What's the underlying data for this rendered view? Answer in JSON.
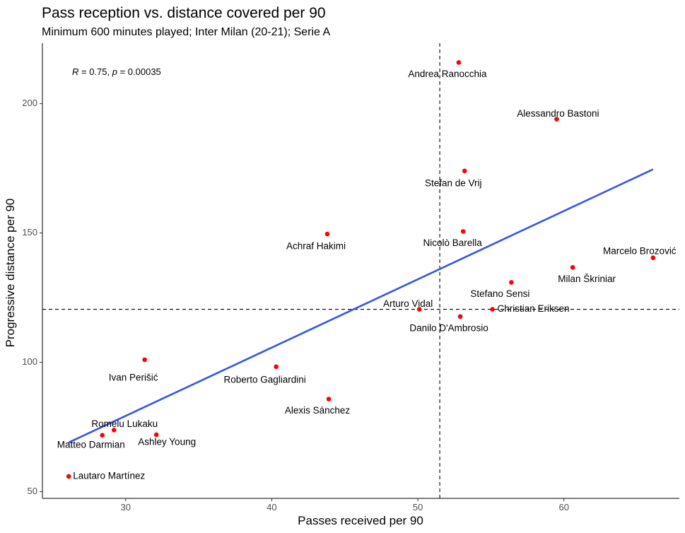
{
  "chart_data": {
    "type": "scatter",
    "title": "Pass reception vs. distance covered per 90",
    "subtitle": "Minimum 600 minutes played; Inter Milan (20-21); Serie A",
    "xlabel": "Passes received per 90",
    "ylabel": "Progressive distance per 90",
    "xlim": [
      24.3,
      67.9
    ],
    "ylim": [
      47.4,
      223.4
    ],
    "xticks": [
      30,
      40,
      50,
      60
    ],
    "yticks": [
      50,
      100,
      150,
      200
    ],
    "grid": false,
    "point_color": "#ff0000",
    "trend_color": "#3355ee",
    "annotation": {
      "r_symbol": "R",
      "r_value": " = 0.75, ",
      "p_symbol": "p",
      "p_value": " = 0.00035"
    },
    "trendline": {
      "x": [
        26.1,
        66.1
      ],
      "y": [
        69.0,
        174.6
      ]
    },
    "vline_x": 51.5,
    "hline_y": 120.5,
    "points": [
      {
        "name": "Andrea Ranocchia",
        "x": 52.8,
        "y": 215.9
      },
      {
        "name": "Alessandro Bastoni",
        "x": 59.5,
        "y": 194.0
      },
      {
        "name": "Stefan de Vrij",
        "x": 53.2,
        "y": 174.0
      },
      {
        "name": "Achraf Hakimi",
        "x": 43.8,
        "y": 149.6
      },
      {
        "name": "Nicolò Barella",
        "x": 53.1,
        "y": 150.6
      },
      {
        "name": "Marcelo Brozović",
        "x": 66.1,
        "y": 140.4
      },
      {
        "name": "Milan Škriniar",
        "x": 60.6,
        "y": 136.7
      },
      {
        "name": "Stefano Sensi",
        "x": 56.4,
        "y": 130.9
      },
      {
        "name": "Arturo Vidal",
        "x": 50.1,
        "y": 120.5
      },
      {
        "name": "Christian Eriksen",
        "x": 55.1,
        "y": 120.5
      },
      {
        "name": "Danilo D'Ambrosio",
        "x": 52.9,
        "y": 117.7
      },
      {
        "name": "Ivan Perišić",
        "x": 31.3,
        "y": 101.0
      },
      {
        "name": "Roberto Gagliardini",
        "x": 40.3,
        "y": 98.3
      },
      {
        "name": "Alexis Sánchez",
        "x": 43.9,
        "y": 85.8
      },
      {
        "name": "Romelu Lukaku",
        "x": 29.2,
        "y": 73.8
      },
      {
        "name": "Matteo Darmian",
        "x": 28.4,
        "y": 71.8
      },
      {
        "name": "Ashley Young",
        "x": 32.1,
        "y": 72.0
      },
      {
        "name": "Lautaro Martínez",
        "x": 26.1,
        "y": 55.9
      }
    ]
  }
}
